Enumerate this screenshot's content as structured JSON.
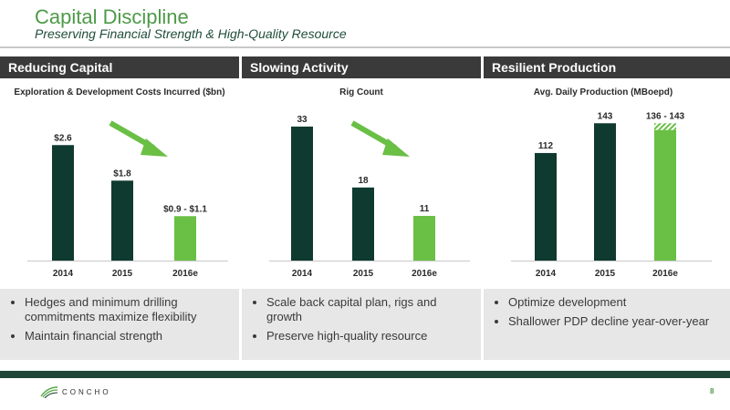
{
  "header": {
    "title": "Capital Discipline",
    "subtitle": "Preserving Financial Strength & High-Quality Resource"
  },
  "panels": [
    {
      "heading": "Reducing Capital",
      "bullets": [
        "Hedges and minimum drilling commitments maximize flexibility",
        "Maintain financial strength"
      ]
    },
    {
      "heading": "Slowing Activity",
      "bullets": [
        "Scale back capital plan, rigs and growth",
        "Preserve high-quality resource"
      ]
    },
    {
      "heading": "Resilient Production",
      "bullets": [
        "Optimize development",
        "Shallower PDP decline year-over-year"
      ]
    }
  ],
  "chart_data": [
    {
      "type": "bar",
      "title": "Exploration & Development Costs Incurred ($bn)",
      "categories": [
        "2014",
        "2015",
        "2016e"
      ],
      "values": [
        2.6,
        1.8,
        1.0
      ],
      "range_high": [
        null,
        null,
        null
      ],
      "data_labels": [
        "$2.6",
        "$1.8",
        "$0.9 - $1.1"
      ],
      "bar_colors": [
        "#0f3a30",
        "#0f3a30",
        "#6abf45"
      ],
      "ylim": [
        0,
        3.2
      ],
      "arrow": true
    },
    {
      "type": "bar",
      "title": "Rig Count",
      "categories": [
        "2014",
        "2015",
        "2016e"
      ],
      "values": [
        33,
        18,
        11
      ],
      "range_high": [
        null,
        null,
        null
      ],
      "data_labels": [
        "33",
        "18",
        "11"
      ],
      "bar_colors": [
        "#0f3a30",
        "#0f3a30",
        "#6abf45"
      ],
      "ylim": [
        0,
        35
      ],
      "arrow": true
    },
    {
      "type": "bar",
      "title": "Avg. Daily Production (MBoepd)",
      "categories": [
        "2014",
        "2015",
        "2016e"
      ],
      "values": [
        112,
        143,
        136
      ],
      "range_high": [
        null,
        null,
        143
      ],
      "data_labels": [
        "112",
        "143",
        "136 - 143"
      ],
      "bar_colors": [
        "#0f3a30",
        "#0f3a30",
        "#6abf45"
      ],
      "ylim": [
        0,
        148
      ],
      "arrow": false
    }
  ],
  "footer": {
    "logo_text": "CONCHO",
    "logo_icon": "concho-leaf-icon",
    "page_number": "8"
  }
}
